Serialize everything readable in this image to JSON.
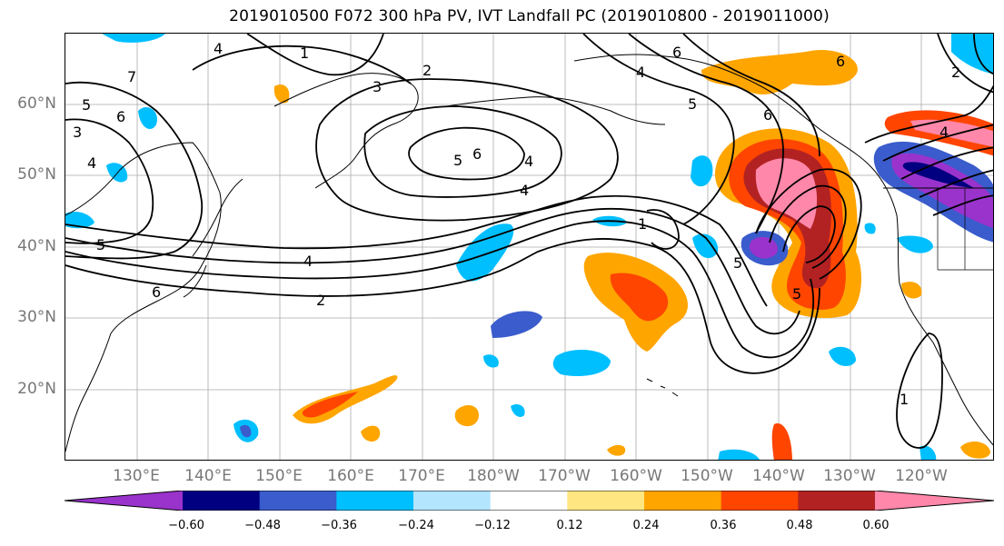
{
  "title": "2019010500 F072 300 hPa PV, IVT Landfall PC (2019010800 - 2019011000)",
  "lat_labels": [
    "60°N",
    "50°N",
    "40°N",
    "30°N",
    "20°N"
  ],
  "lon_labels": [
    "130°E",
    "140°E",
    "150°E",
    "160°E",
    "170°E",
    "180°W",
    "170°W",
    "160°W",
    "150°W",
    "140°W",
    "130°W",
    "120°W"
  ],
  "contour_labels": [
    "1",
    "2",
    "3",
    "4",
    "5",
    "6",
    "4",
    "6",
    "6",
    "5",
    "4",
    "2",
    "6",
    "7",
    "5",
    "6",
    "3",
    "4",
    "5",
    "4",
    "2",
    "6",
    "4",
    "1",
    "5",
    "5",
    "4",
    "1"
  ],
  "colorbar": {
    "colors": [
      "#9933cc",
      "#000080",
      "#3a5ccc",
      "#00bfff",
      "#b3e5ff",
      "#ffffff",
      "#ffe680",
      "#ffa500",
      "#ff4500",
      "#b22222",
      "#ff88aa"
    ],
    "tick_labels": [
      "−0.60",
      "−0.48",
      "−0.36",
      "−0.24",
      "−0.12",
      "0.12",
      "0.24",
      "0.36",
      "0.48",
      "0.60"
    ]
  }
}
